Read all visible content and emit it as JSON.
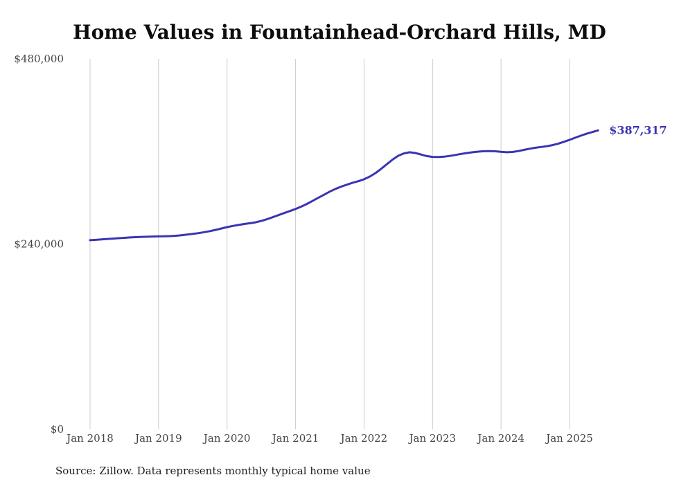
{
  "title": "Home Values in Fountainhead-Orchard Hills, MD",
  "source_note": "Source: Zillow. Data represents monthly typical home value",
  "colors": {
    "line": "#3a34b3",
    "grid": "#cccccc",
    "tick_text": "#444444",
    "title_text": "#0d0d0d"
  },
  "chart_data": {
    "type": "line",
    "title": "Home Values in Fountainhead-Orchard Hills, MD",
    "xlabel": "",
    "ylabel": "",
    "ylim": [
      0,
      480000
    ],
    "grid": "vertical-only",
    "legend": "none",
    "x_tick_labels": [
      "Jan 2018",
      "Jan 2019",
      "Jan 2020",
      "Jan 2021",
      "Jan 2022",
      "Jan 2023",
      "Jan 2024",
      "Jan 2025"
    ],
    "y_ticks": [
      {
        "value": 0,
        "label": "$0"
      },
      {
        "value": 240000,
        "label": "$240,000"
      },
      {
        "value": 480000,
        "label": "$480,000"
      }
    ],
    "series": [
      {
        "name": "Monthly typical home value",
        "start_month": "2018-01",
        "end_month": "2025-06",
        "values": [
          245000,
          245500,
          246000,
          246600,
          247100,
          247600,
          248100,
          248600,
          249000,
          249300,
          249500,
          249800,
          250000,
          250100,
          250300,
          250800,
          251500,
          252300,
          253200,
          254200,
          255400,
          256800,
          258400,
          260200,
          262000,
          263500,
          264800,
          266000,
          267000,
          268200,
          270000,
          272200,
          274800,
          277500,
          280200,
          282800,
          285500,
          288500,
          292000,
          296000,
          300000,
          304000,
          308000,
          311500,
          314500,
          317000,
          319500,
          321500,
          324000,
          327500,
          332000,
          337500,
          343500,
          349500,
          354500,
          357500,
          359000,
          358000,
          356000,
          354000,
          353000,
          352800,
          353200,
          354200,
          355500,
          356800,
          358000,
          359000,
          359800,
          360300,
          360500,
          360200,
          359500,
          359000,
          359300,
          360500,
          362000,
          363500,
          364800,
          365800,
          366800,
          368200,
          370000,
          372500,
          375000,
          377800,
          380500,
          383000,
          385200,
          387317
        ]
      }
    ],
    "final_value": 387317,
    "final_label": "$387,317"
  }
}
